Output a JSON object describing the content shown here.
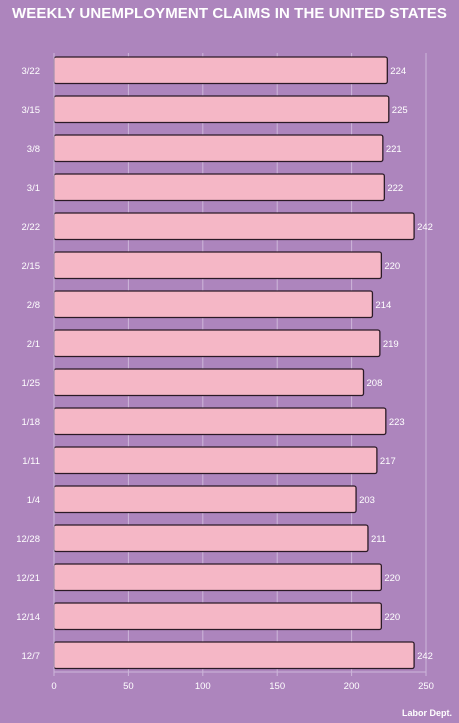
{
  "title": "WEEKLY UNEMPLOYMENT CLAIMS IN THE UNITED STATES",
  "source": "Labor Dept.",
  "colors": {
    "background": "#ad85bd",
    "bar_fill": "#f5b7c6",
    "bar_stroke": "#2b1a26",
    "text": "#ffffff",
    "gridline": "#cdb6da"
  },
  "chart_data": {
    "type": "bar",
    "orientation": "horizontal",
    "title": "WEEKLY UNEMPLOYMENT CLAIMS IN THE UNITED STATES",
    "categories": [
      "3/22",
      "3/15",
      "3/8",
      "3/1",
      "2/22",
      "2/15",
      "2/8",
      "2/1",
      "1/25",
      "1/18",
      "1/11",
      "1/4",
      "12/28",
      "12/21",
      "12/14",
      "12/7"
    ],
    "values": [
      224,
      225,
      221,
      222,
      242,
      220,
      214,
      219,
      208,
      223,
      217,
      203,
      211,
      220,
      220,
      242
    ],
    "value_labels": [
      "224",
      "225",
      "221",
      "222",
      "242",
      "220",
      "214",
      "219",
      "208",
      "223",
      "217",
      "203",
      "211",
      "220",
      "220",
      "242"
    ],
    "xlim": [
      0,
      250
    ],
    "xticks": [
      "0",
      "50",
      "100",
      "150",
      "200",
      "250"
    ],
    "xtick_values": [
      0,
      50,
      100,
      150,
      200,
      250
    ],
    "xlabel": "",
    "ylabel": "",
    "grid": true,
    "legend": "none"
  }
}
